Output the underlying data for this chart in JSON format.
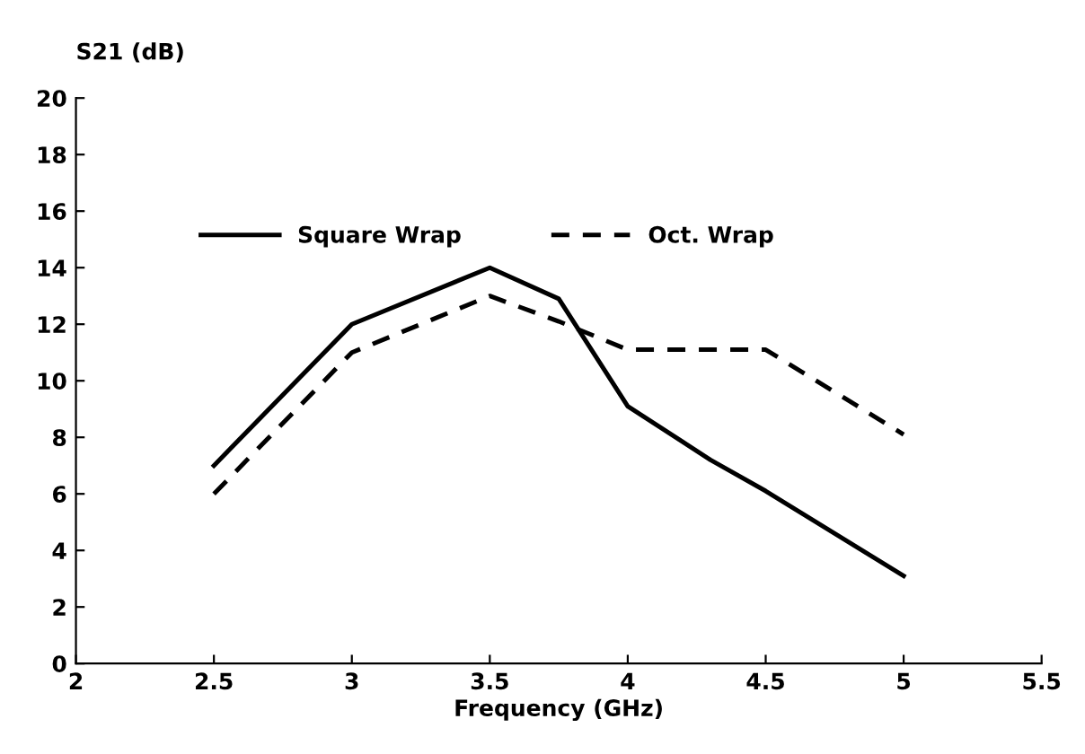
{
  "chart_data": {
    "type": "line",
    "xlabel": "Frequency (GHz)",
    "ylabel": "S21 (dB)",
    "xlim": [
      2,
      5.5
    ],
    "xticks": [
      2,
      2.5,
      3,
      3.5,
      4,
      4.5,
      5,
      5.5
    ],
    "ylim": [
      0,
      20
    ],
    "yticks": [
      0,
      2,
      4,
      6,
      8,
      10,
      12,
      14,
      16,
      18,
      20
    ],
    "grid": false,
    "legend": "top left",
    "series": [
      {
        "name": "Square Wrap",
        "color": "#000000",
        "line_style": "solid",
        "x": [
          2.5,
          3,
          3.5,
          3.75,
          4,
          4.3,
          4.5,
          5
        ],
        "values": [
          7,
          12,
          14,
          12.9,
          9.1,
          7.2,
          6.1,
          3.1
        ]
      },
      {
        "name": "Oct. Wrap",
        "color": "#000000",
        "line_style": "dashed",
        "x": [
          2.5,
          3,
          3.5,
          3.75,
          4,
          4.5,
          5
        ],
        "values": [
          6,
          11,
          13,
          12.1,
          11.1,
          11.1,
          8.1
        ]
      }
    ]
  }
}
